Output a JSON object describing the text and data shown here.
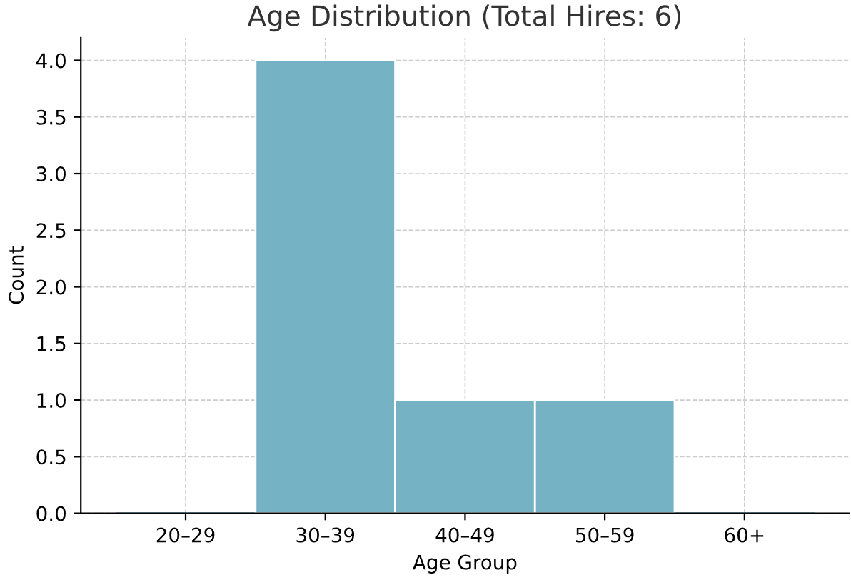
{
  "chart_data": {
    "type": "bar",
    "title": "Age Distribution (Total Hires: 6)",
    "xlabel": "Age Group",
    "ylabel": "Count",
    "categories": [
      "20–29",
      "30–39",
      "40–49",
      "50–59",
      "60+"
    ],
    "values": [
      0,
      4,
      1,
      1,
      0
    ],
    "color": "#75b3c4",
    "ylim": [
      0,
      4.2
    ],
    "yticks": [
      {
        "value": 0,
        "label": "0.0"
      },
      {
        "value": 0.5,
        "label": "0.5"
      },
      {
        "value": 1,
        "label": "1.0"
      },
      {
        "value": 1.5,
        "label": "1.5"
      },
      {
        "value": 2,
        "label": "2.0"
      },
      {
        "value": 2.5,
        "label": "2.5"
      },
      {
        "value": 3,
        "label": "3.0"
      },
      {
        "value": 3.5,
        "label": "3.5"
      },
      {
        "value": 4,
        "label": "4.0"
      }
    ],
    "grid": true,
    "line_style": "dashed"
  }
}
